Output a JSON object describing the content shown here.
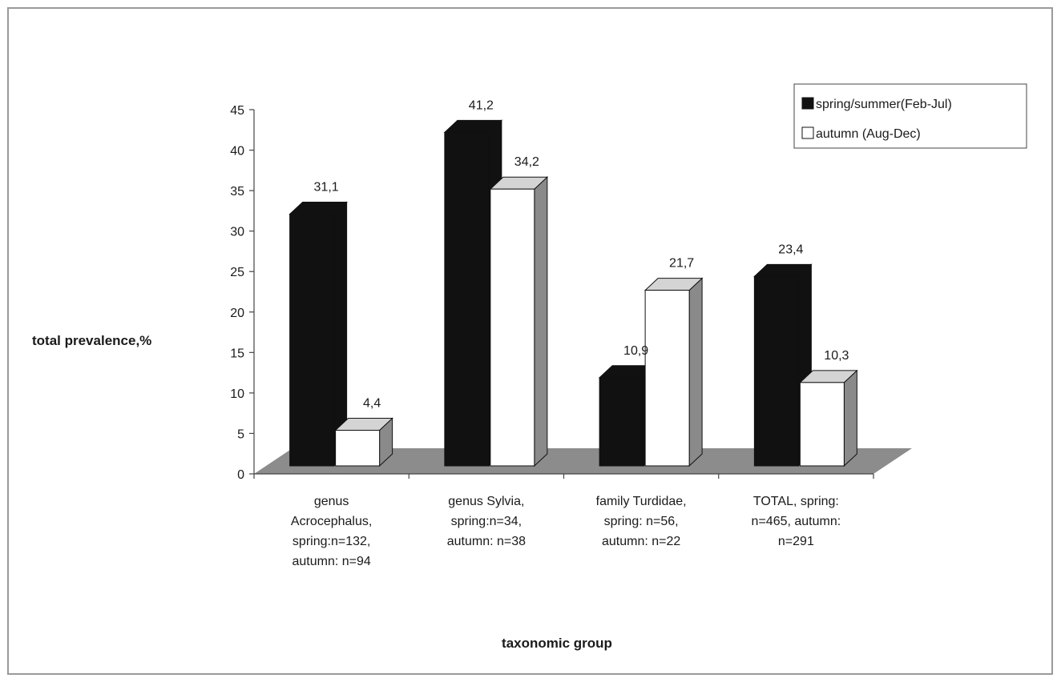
{
  "chart_data": {
    "type": "bar",
    "style": "3d-clustered-column",
    "title": "",
    "xlabel": "taxonomic group",
    "ylabel": "total prevalence,%",
    "ylim": [
      0,
      45
    ],
    "yticks": [
      "0",
      "5",
      "10",
      "15",
      "20",
      "25",
      "30",
      "35",
      "40",
      "45"
    ],
    "grid": false,
    "legend_position": "top-right",
    "categories": [
      [
        "genus",
        "Acrocephalus,",
        "spring:n=132,",
        "autumn:  n=94"
      ],
      [
        "genus Sylvia,",
        "spring:n=34,",
        "autumn: n=38"
      ],
      [
        "family Turdidae,",
        "spring: n=56,",
        "autumn: n=22"
      ],
      [
        "TOTAL, spring:",
        "n=465, autumn:",
        "n=291"
      ]
    ],
    "series": [
      {
        "name": "spring/summer(Feb-Jul)",
        "color": "#111111",
        "values": [
          31.1,
          41.2,
          10.9,
          23.4
        ],
        "labels": [
          "31,1",
          "41,2",
          "10,9",
          "23,4"
        ]
      },
      {
        "name": "autumn (Aug-Dec)",
        "color": "#ffffff",
        "values": [
          4.4,
          34.2,
          21.7,
          10.3
        ],
        "labels": [
          "4,4",
          "34,2",
          "21,7",
          "10,3"
        ]
      }
    ]
  }
}
